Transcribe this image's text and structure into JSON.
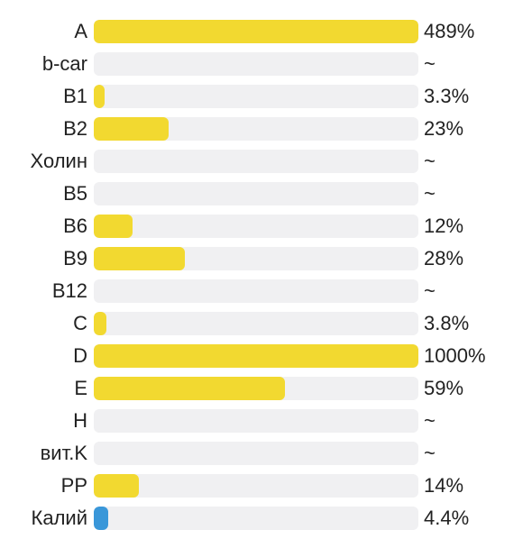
{
  "chart_data": {
    "type": "bar",
    "orientation": "horizontal",
    "categories": [
      "A",
      "b-car",
      "B1",
      "B2",
      "Холин",
      "B5",
      "B6",
      "B9",
      "B12",
      "C",
      "D",
      "E",
      "H",
      "вит.K",
      "PP",
      "Калий"
    ],
    "values": [
      489,
      null,
      3.3,
      23,
      null,
      null,
      12,
      28,
      null,
      3.8,
      1000,
      59,
      null,
      null,
      14,
      4.4
    ],
    "value_labels": [
      "489%",
      "~",
      "3.3%",
      "23%",
      "~",
      "~",
      "12%",
      "28%",
      "~",
      "3.8%",
      "1000%",
      "59%",
      "~",
      "~",
      "14%",
      "4.4%"
    ],
    "bar_colors": [
      "#f2d930",
      "#f2d930",
      "#f2d930",
      "#f2d930",
      "#f2d930",
      "#f2d930",
      "#f2d930",
      "#f2d930",
      "#f2d930",
      "#f2d930",
      "#f2d930",
      "#f2d930",
      "#f2d930",
      "#f2d930",
      "#f2d930",
      "#3a97d9"
    ],
    "track_color": "#f0f0f2",
    "xlim": [
      0,
      100
    ],
    "title": "",
    "xlabel": "",
    "ylabel": ""
  }
}
